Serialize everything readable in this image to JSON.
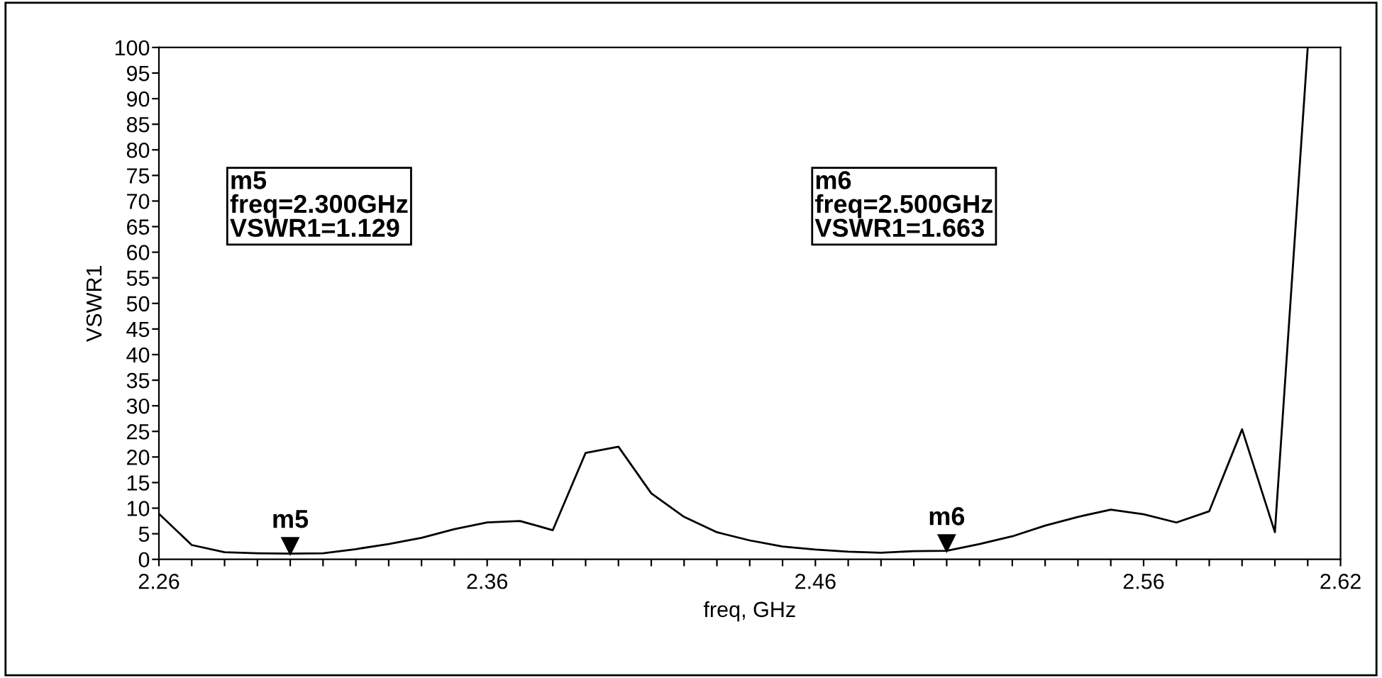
{
  "chart_data": {
    "type": "line",
    "xlabel": "freq, GHz",
    "ylabel": "VSWR1",
    "x": [
      2.26,
      2.27,
      2.28,
      2.29,
      2.3,
      2.31,
      2.32,
      2.33,
      2.34,
      2.35,
      2.36,
      2.37,
      2.38,
      2.39,
      2.4,
      2.41,
      2.42,
      2.43,
      2.44,
      2.45,
      2.46,
      2.47,
      2.48,
      2.49,
      2.5,
      2.51,
      2.52,
      2.53,
      2.54,
      2.55,
      2.56,
      2.57,
      2.58,
      2.59,
      2.6,
      2.61
    ],
    "series": [
      {
        "color": "#000000",
        "values": [
          8.9,
          2.8,
          1.4,
          1.2,
          1.129,
          1.2,
          2,
          3,
          4.2,
          5.9,
          7.2,
          7.5,
          5.7,
          20.8,
          22,
          12.9,
          8.3,
          5.3,
          3.7,
          2.5,
          1.9,
          1.5,
          1.3,
          1.6,
          1.663,
          3,
          4.5,
          6.6,
          8.3,
          9.7,
          8.8,
          7.2,
          9.4,
          25.4,
          5.3,
          100
        ]
      }
    ],
    "xlim": [
      2.26,
      2.62
    ],
    "ylim": [
      0,
      100
    ],
    "xticks": [
      2.26,
      {
        "value": 2.27,
        "label": null
      },
      {
        "value": 2.28,
        "label": null
      },
      {
        "value": 2.29,
        "label": null
      },
      {
        "value": 2.3,
        "label": null
      },
      {
        "value": 2.31,
        "label": null
      },
      {
        "value": 2.32,
        "label": null
      },
      {
        "value": 2.33,
        "label": null
      },
      {
        "value": 2.34,
        "label": null
      },
      {
        "value": 2.35,
        "label": null
      },
      2.36,
      {
        "value": 2.37,
        "label": null
      },
      {
        "value": 2.38,
        "label": null
      },
      {
        "value": 2.39,
        "label": null
      },
      {
        "value": 2.4,
        "label": null
      },
      {
        "value": 2.41,
        "label": null
      },
      {
        "value": 2.42,
        "label": null
      },
      {
        "value": 2.43,
        "label": null
      },
      {
        "value": 2.44,
        "label": null
      },
      {
        "value": 2.45,
        "label": null
      },
      2.46,
      {
        "value": 2.47,
        "label": null
      },
      {
        "value": 2.48,
        "label": null
      },
      {
        "value": 2.49,
        "label": null
      },
      {
        "value": 2.5,
        "label": null
      },
      {
        "value": 2.51,
        "label": null
      },
      {
        "value": 2.52,
        "label": null
      },
      {
        "value": 2.53,
        "label": null
      },
      {
        "value": 2.54,
        "label": null
      },
      {
        "value": 2.55,
        "label": null
      },
      2.56,
      {
        "value": 2.57,
        "label": null
      },
      {
        "value": 2.58,
        "label": null
      },
      {
        "value": 2.59,
        "label": null
      },
      {
        "value": 2.6,
        "label": null
      },
      {
        "value": 2.61,
        "label": null
      },
      2.62
    ],
    "yticks": [
      0,
      5,
      10,
      15,
      20,
      25,
      30,
      35,
      40,
      45,
      50,
      55,
      60,
      65,
      70,
      75,
      80,
      85,
      90,
      95,
      100
    ],
    "grid": false,
    "legend": false,
    "marker": "none",
    "line_style": "solid",
    "annotations": [
      {
        "text": "m5",
        "x": 2.3,
        "y": 1.129
      },
      {
        "text": "m6",
        "x": 2.5,
        "y": 1.663
      },
      "m5\nfreq=2.300GHz\nVSWR1=1.129",
      "m6\nfreq=2.500GHz\nVSWR1=1.663"
    ]
  }
}
